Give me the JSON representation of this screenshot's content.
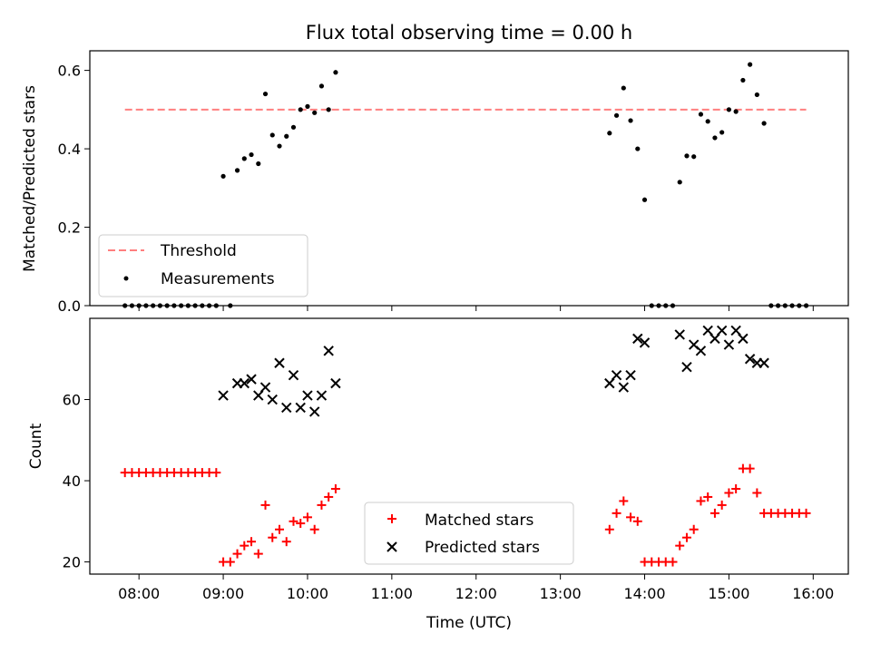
{
  "figure": {
    "title": "Flux total observing time = 0.00 h",
    "xlabel": "Time (UTC)"
  },
  "chart_data": [
    {
      "type": "scatter",
      "ylabel": "Matched/Predicted stars",
      "xlim": [
        "07:25",
        "16:25"
      ],
      "ylim": [
        0,
        0.65
      ],
      "yticks": [
        0.0,
        0.2,
        0.4,
        0.6
      ],
      "ytick_labels": [
        "0.0",
        "0.2",
        "0.4",
        "0.6"
      ],
      "xticks": [
        "08:00",
        "09:00",
        "10:00",
        "11:00",
        "12:00",
        "13:00",
        "14:00",
        "15:00",
        "16:00"
      ],
      "grid": false,
      "legend": {
        "position": "lower-left",
        "entries": [
          "Threshold",
          "Measurements"
        ]
      },
      "threshold": {
        "name": "Threshold",
        "value": 0.5,
        "x_start": "07:50",
        "x_end": "15:55",
        "color": "#ff7f7f"
      },
      "series": [
        {
          "name": "Measurements",
          "color": "#000000",
          "points": [
            [
              "07:50",
              0.0
            ],
            [
              "07:55",
              0.0
            ],
            [
              "08:00",
              0.0
            ],
            [
              "08:05",
              0.0
            ],
            [
              "08:10",
              0.0
            ],
            [
              "08:15",
              0.0
            ],
            [
              "08:20",
              0.0
            ],
            [
              "08:25",
              0.0
            ],
            [
              "08:30",
              0.0
            ],
            [
              "08:35",
              0.0
            ],
            [
              "08:40",
              0.0
            ],
            [
              "08:45",
              0.0
            ],
            [
              "08:50",
              0.0
            ],
            [
              "08:55",
              0.0
            ],
            [
              "09:00",
              0.33
            ],
            [
              "09:05",
              0.0
            ],
            [
              "09:10",
              0.345
            ],
            [
              "09:15",
              0.375
            ],
            [
              "09:20",
              0.385
            ],
            [
              "09:25",
              0.362
            ],
            [
              "09:30",
              0.54
            ],
            [
              "09:35",
              0.435
            ],
            [
              "09:40",
              0.407
            ],
            [
              "09:45",
              0.432
            ],
            [
              "09:50",
              0.455
            ],
            [
              "09:55",
              0.5
            ],
            [
              "10:00",
              0.508
            ],
            [
              "10:05",
              0.492
            ],
            [
              "10:10",
              0.56
            ],
            [
              "10:15",
              0.5
            ],
            [
              "10:20",
              0.595
            ],
            [
              "13:35",
              0.44
            ],
            [
              "13:40",
              0.485
            ],
            [
              "13:45",
              0.555
            ],
            [
              "13:50",
              0.472
            ],
            [
              "13:55",
              0.4
            ],
            [
              "14:00",
              0.27
            ],
            [
              "14:05",
              0.0
            ],
            [
              "14:10",
              0.0
            ],
            [
              "14:15",
              0.0
            ],
            [
              "14:20",
              0.0
            ],
            [
              "14:25",
              0.315
            ],
            [
              "14:30",
              0.382
            ],
            [
              "14:35",
              0.38
            ],
            [
              "14:40",
              0.488
            ],
            [
              "14:45",
              0.47
            ],
            [
              "14:50",
              0.428
            ],
            [
              "14:55",
              0.442
            ],
            [
              "15:00",
              0.5
            ],
            [
              "15:05",
              0.495
            ],
            [
              "15:10",
              0.575
            ],
            [
              "15:15",
              0.615
            ],
            [
              "15:20",
              0.538
            ],
            [
              "15:25",
              0.465
            ],
            [
              "15:30",
              0.0
            ],
            [
              "15:35",
              0.0
            ],
            [
              "15:40",
              0.0
            ],
            [
              "15:45",
              0.0
            ],
            [
              "15:50",
              0.0
            ],
            [
              "15:55",
              0.0
            ]
          ]
        }
      ]
    },
    {
      "type": "scatter",
      "ylabel": "Count",
      "xlabel": "Time (UTC)",
      "xlim": [
        "07:25",
        "16:25"
      ],
      "ylim": [
        17,
        80
      ],
      "yticks": [
        20,
        40,
        60
      ],
      "ytick_labels": [
        "20",
        "40",
        "60"
      ],
      "xticks": [
        "08:00",
        "09:00",
        "10:00",
        "11:00",
        "12:00",
        "13:00",
        "14:00",
        "15:00",
        "16:00"
      ],
      "grid": false,
      "legend": {
        "position": "lower-center",
        "entries": [
          "Matched stars",
          "Predicted stars"
        ]
      },
      "series": [
        {
          "name": "Matched stars",
          "marker": "plus",
          "color": "#ff0000",
          "points": [
            [
              "07:50",
              42
            ],
            [
              "07:55",
              42
            ],
            [
              "08:00",
              42
            ],
            [
              "08:05",
              42
            ],
            [
              "08:10",
              42
            ],
            [
              "08:15",
              42
            ],
            [
              "08:20",
              42
            ],
            [
              "08:25",
              42
            ],
            [
              "08:30",
              42
            ],
            [
              "08:35",
              42
            ],
            [
              "08:40",
              42
            ],
            [
              "08:45",
              42
            ],
            [
              "08:50",
              42
            ],
            [
              "08:55",
              42
            ],
            [
              "09:00",
              20
            ],
            [
              "09:05",
              20
            ],
            [
              "09:10",
              22
            ],
            [
              "09:15",
              24
            ],
            [
              "09:20",
              25
            ],
            [
              "09:25",
              22
            ],
            [
              "09:30",
              34
            ],
            [
              "09:35",
              26
            ],
            [
              "09:40",
              28
            ],
            [
              "09:45",
              25
            ],
            [
              "09:50",
              30
            ],
            [
              "09:55",
              29.5
            ],
            [
              "10:00",
              31
            ],
            [
              "10:05",
              28
            ],
            [
              "10:10",
              34
            ],
            [
              "10:15",
              36
            ],
            [
              "10:20",
              38
            ],
            [
              "13:35",
              28
            ],
            [
              "13:40",
              32
            ],
            [
              "13:45",
              35
            ],
            [
              "13:50",
              31
            ],
            [
              "13:55",
              30
            ],
            [
              "14:00",
              20
            ],
            [
              "14:05",
              20
            ],
            [
              "14:10",
              20
            ],
            [
              "14:15",
              20
            ],
            [
              "14:20",
              20
            ],
            [
              "14:25",
              24
            ],
            [
              "14:30",
              26
            ],
            [
              "14:35",
              28
            ],
            [
              "14:40",
              35
            ],
            [
              "14:45",
              36
            ],
            [
              "14:50",
              32
            ],
            [
              "14:55",
              34
            ],
            [
              "15:00",
              37
            ],
            [
              "15:05",
              38
            ],
            [
              "15:10",
              43
            ],
            [
              "15:15",
              43
            ],
            [
              "15:20",
              37
            ],
            [
              "15:25",
              32
            ],
            [
              "15:30",
              32
            ],
            [
              "15:35",
              32
            ],
            [
              "15:40",
              32
            ],
            [
              "15:45",
              32
            ],
            [
              "15:50",
              32
            ],
            [
              "15:55",
              32
            ]
          ]
        },
        {
          "name": "Predicted stars",
          "marker": "x",
          "color": "#000000",
          "points": [
            [
              "09:00",
              61
            ],
            [
              "09:10",
              64
            ],
            [
              "09:15",
              64
            ],
            [
              "09:20",
              65
            ],
            [
              "09:25",
              61
            ],
            [
              "09:30",
              63
            ],
            [
              "09:35",
              60
            ],
            [
              "09:40",
              69
            ],
            [
              "09:45",
              58
            ],
            [
              "09:50",
              66
            ],
            [
              "09:55",
              58
            ],
            [
              "10:00",
              61
            ],
            [
              "10:05",
              57
            ],
            [
              "10:10",
              61
            ],
            [
              "10:15",
              72
            ],
            [
              "10:20",
              64
            ],
            [
              "13:35",
              64
            ],
            [
              "13:40",
              66
            ],
            [
              "13:45",
              63
            ],
            [
              "13:50",
              66
            ],
            [
              "13:55",
              75
            ],
            [
              "14:00",
              74
            ],
            [
              "14:25",
              76
            ],
            [
              "14:30",
              68
            ],
            [
              "14:35",
              73.5
            ],
            [
              "14:40",
              72
            ],
            [
              "14:45",
              77
            ],
            [
              "14:50",
              75
            ],
            [
              "14:55",
              77
            ],
            [
              "15:00",
              73.5
            ],
            [
              "15:05",
              77
            ],
            [
              "15:10",
              75
            ],
            [
              "15:15",
              70
            ],
            [
              "15:20",
              69
            ],
            [
              "15:25",
              69
            ]
          ]
        }
      ]
    }
  ]
}
